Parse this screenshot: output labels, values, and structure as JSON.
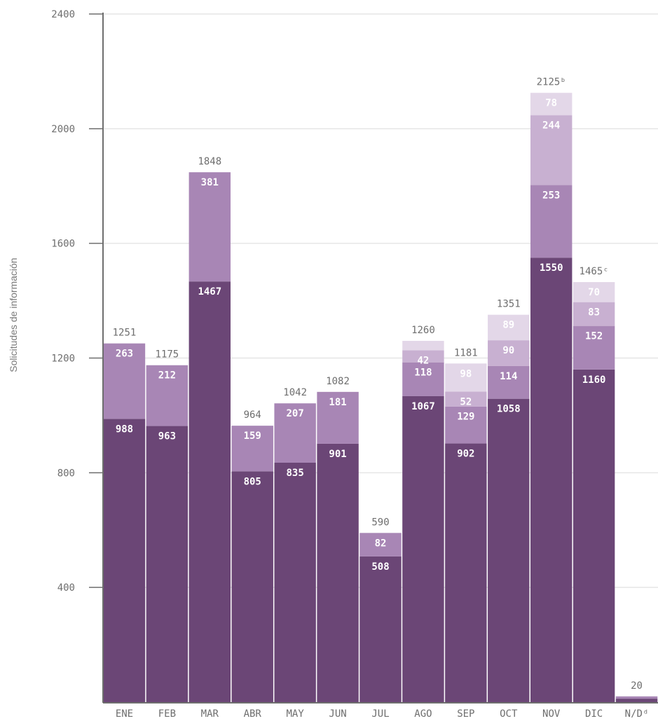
{
  "chart_data": {
    "type": "bar",
    "stacked": true,
    "ylabel": "Solicitudes de información",
    "xlabel": "",
    "ylim": [
      0,
      2400
    ],
    "y_ticks": [
      400,
      800,
      1200,
      1600,
      2000,
      2400
    ],
    "grid": true,
    "categories": [
      "ENE",
      "FEB",
      "MAR",
      "ABR",
      "MAY",
      "JUN",
      "JUL",
      "AGO",
      "SEP",
      "OCT",
      "NOV",
      "DIC",
      "N/Dᵈ"
    ],
    "series": [
      {
        "values": [
          988,
          963,
          1467,
          805,
          835,
          901,
          508,
          1067,
          902,
          1058,
          1550,
          1160,
          12
        ]
      },
      {
        "values": [
          263,
          212,
          381,
          159,
          207,
          181,
          82,
          118,
          129,
          114,
          253,
          152,
          8
        ]
      },
      {
        "values": [
          0,
          0,
          0,
          0,
          0,
          0,
          0,
          42,
          52,
          90,
          244,
          83,
          0
        ]
      },
      {
        "values": [
          0,
          0,
          0,
          0,
          0,
          0,
          0,
          33,
          98,
          89,
          78,
          70,
          0
        ]
      }
    ],
    "segment_labels": [
      [
        "988",
        "963",
        "1467",
        "805",
        "835",
        "901",
        "508",
        "1067",
        "902",
        "1058",
        "1550",
        "1160",
        ""
      ],
      [
        "263",
        "212",
        "381",
        "159",
        "207",
        "181",
        "82",
        "118",
        "129",
        "114",
        "253",
        "152",
        ""
      ],
      [
        "",
        "",
        "",
        "",
        "",
        "",
        "",
        "42",
        "52",
        "90",
        "244",
        "83",
        ""
      ],
      [
        "",
        "",
        "",
        "",
        "",
        "",
        "",
        "",
        "98",
        "89",
        "78",
        "70",
        ""
      ]
    ],
    "totals": [
      "1251",
      "1175",
      "1848",
      "964",
      "1042",
      "1082",
      "590",
      "1260",
      "1181",
      "1351",
      "2125ᵇ",
      "1465ᶜ",
      "20"
    ],
    "colors": {
      "series": [
        "#6b4676",
        "#a886b5",
        "#c8b0d1",
        "#e3d7e8"
      ],
      "axis": "#6e6e6e",
      "grid": "#e6e6e6",
      "tick_text": "#6e6e6e",
      "total_text": "#6e6e6e",
      "segment_text": "#ffffff",
      "ylabel_text": "#7a7a7a"
    }
  }
}
